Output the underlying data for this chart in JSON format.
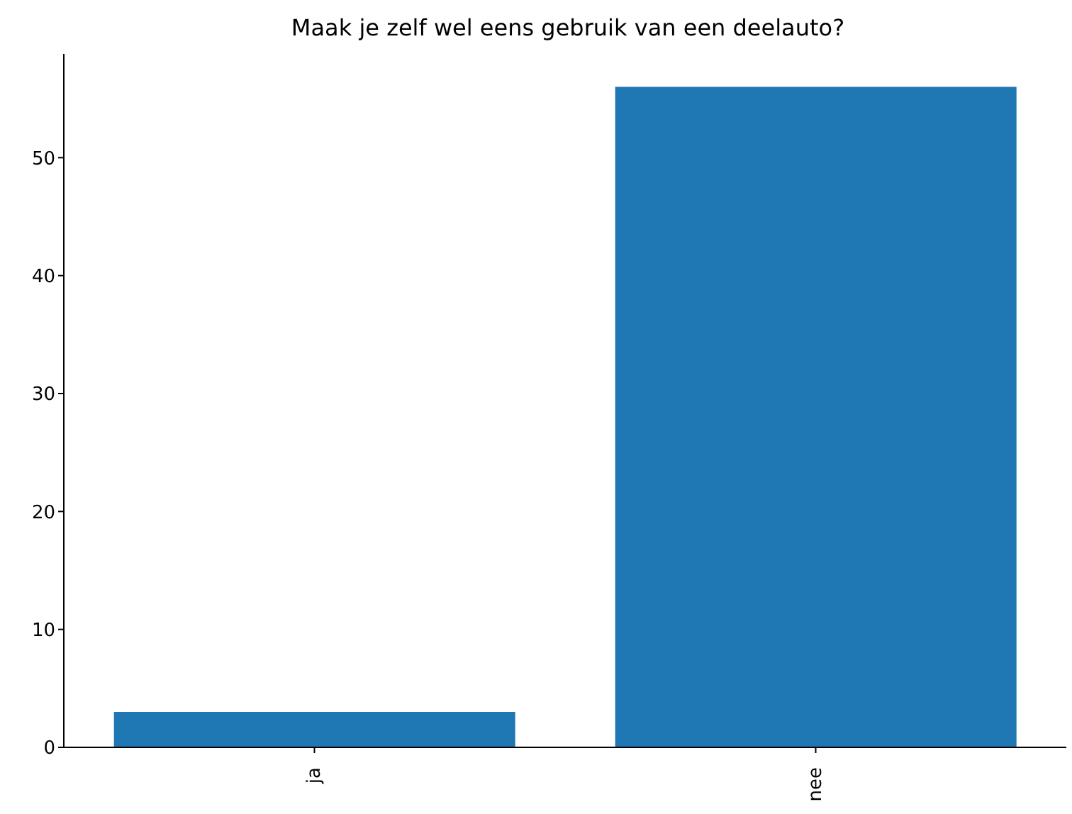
{
  "chart_data": {
    "type": "bar",
    "title": "Maak je zelf wel eens gebruik van een deelauto?",
    "categories": [
      "ja",
      "nee"
    ],
    "values": [
      3,
      56
    ],
    "color": "#1f77b4",
    "ylim": [
      0,
      58.8
    ],
    "yticks": [
      0,
      10,
      20,
      30,
      40,
      50
    ],
    "grid": false,
    "legend": false
  }
}
